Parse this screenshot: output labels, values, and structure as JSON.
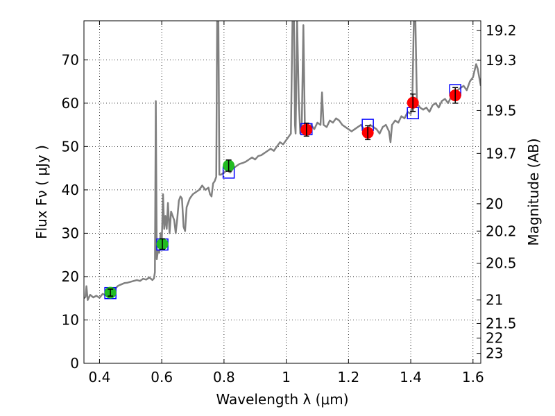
{
  "chart_data": {
    "type": "scatter",
    "xlabel": "Wavelength  λ (μm)",
    "ylabel": "Flux  Fν  ( μJy )",
    "y2label": "Magnitude (AB)",
    "xlim": [
      0.35,
      1.625
    ],
    "ylim": [
      0,
      79
    ],
    "grid": true,
    "x_ticks": [
      0.4,
      0.6,
      0.8,
      1.0,
      1.2,
      1.4,
      1.6
    ],
    "x_tick_labels": [
      "0.4",
      "0.6",
      "0.8",
      "1",
      "1.2",
      "1.4",
      "1.6"
    ],
    "y_ticks": [
      0,
      10,
      20,
      30,
      40,
      50,
      60,
      70
    ],
    "y_tick_labels": [
      "0",
      "10",
      "20",
      "30",
      "40",
      "50",
      "60",
      "70"
    ],
    "mag_ticks": [
      {
        "label": "19.2",
        "flux": 76.8
      },
      {
        "label": "19.3",
        "flux": 69.9
      },
      {
        "label": "19.5",
        "flux": 58.3
      },
      {
        "label": "19.7",
        "flux": 48.4
      },
      {
        "label": "20",
        "flux": 36.8
      },
      {
        "label": "20.2",
        "flux": 30.5
      },
      {
        "label": "20.5",
        "flux": 23.1
      },
      {
        "label": "21",
        "flux": 14.6
      },
      {
        "label": "21.5",
        "flux": 9.2
      },
      {
        "label": "22",
        "flux": 5.8
      },
      {
        "label": "23",
        "flux": 2.3
      }
    ],
    "series": [
      {
        "kind": "line",
        "color": "#808080",
        "points": [
          [
            0.35,
            15.0
          ],
          [
            0.355,
            15.3
          ],
          [
            0.358,
            17.8
          ],
          [
            0.362,
            14.6
          ],
          [
            0.37,
            15.8
          ],
          [
            0.38,
            15.2
          ],
          [
            0.39,
            15.6
          ],
          [
            0.4,
            15.1
          ],
          [
            0.41,
            16.0
          ],
          [
            0.42,
            15.7
          ],
          [
            0.43,
            16.4
          ],
          [
            0.44,
            17.0
          ],
          [
            0.45,
            17.2
          ],
          [
            0.46,
            17.9
          ],
          [
            0.47,
            18.2
          ],
          [
            0.48,
            18.5
          ],
          [
            0.49,
            18.6
          ],
          [
            0.5,
            18.8
          ],
          [
            0.51,
            19.0
          ],
          [
            0.52,
            19.2
          ],
          [
            0.53,
            19.0
          ],
          [
            0.54,
            19.5
          ],
          [
            0.55,
            19.3
          ],
          [
            0.56,
            19.8
          ],
          [
            0.57,
            19.2
          ],
          [
            0.575,
            19.6
          ],
          [
            0.578,
            21.0
          ],
          [
            0.581,
            60.5
          ],
          [
            0.584,
            24.0
          ],
          [
            0.588,
            26.0
          ],
          [
            0.592,
            25.5
          ],
          [
            0.596,
            30.0
          ],
          [
            0.6,
            28.0
          ],
          [
            0.604,
            39.0
          ],
          [
            0.608,
            31.0
          ],
          [
            0.612,
            34.0
          ],
          [
            0.616,
            31.0
          ],
          [
            0.62,
            37.0
          ],
          [
            0.625,
            30.0
          ],
          [
            0.63,
            35.0
          ],
          [
            0.635,
            34.0
          ],
          [
            0.64,
            33.0
          ],
          [
            0.645,
            30.0
          ],
          [
            0.65,
            33.5
          ],
          [
            0.655,
            37.5
          ],
          [
            0.66,
            38.5
          ],
          [
            0.665,
            38.0
          ],
          [
            0.67,
            31.5
          ],
          [
            0.675,
            30.5
          ],
          [
            0.68,
            36.0
          ],
          [
            0.69,
            38.0
          ],
          [
            0.7,
            39.0
          ],
          [
            0.71,
            39.5
          ],
          [
            0.72,
            40.0
          ],
          [
            0.73,
            41.0
          ],
          [
            0.74,
            40.0
          ],
          [
            0.75,
            40.5
          ],
          [
            0.755,
            39.0
          ],
          [
            0.76,
            38.5
          ],
          [
            0.765,
            41.5
          ],
          [
            0.77,
            42.0
          ],
          [
            0.775,
            43.0
          ],
          [
            0.778,
            79.0
          ],
          [
            0.782,
            79.0
          ],
          [
            0.785,
            43.5
          ],
          [
            0.79,
            43.5
          ],
          [
            0.8,
            44.0
          ],
          [
            0.81,
            44.5
          ],
          [
            0.82,
            44.0
          ],
          [
            0.83,
            45.0
          ],
          [
            0.84,
            45.5
          ],
          [
            0.85,
            46.0
          ],
          [
            0.86,
            46.2
          ],
          [
            0.87,
            46.5
          ],
          [
            0.88,
            47.0
          ],
          [
            0.89,
            47.5
          ],
          [
            0.9,
            47.0
          ],
          [
            0.91,
            47.8
          ],
          [
            0.92,
            48.0
          ],
          [
            0.93,
            48.5
          ],
          [
            0.94,
            49.0
          ],
          [
            0.95,
            49.5
          ],
          [
            0.96,
            49.0
          ],
          [
            0.97,
            50.0
          ],
          [
            0.98,
            51.0
          ],
          [
            0.99,
            50.5
          ],
          [
            1.0,
            51.5
          ],
          [
            1.01,
            52.5
          ],
          [
            1.015,
            53.0
          ],
          [
            1.02,
            79.0
          ],
          [
            1.025,
            79.0
          ],
          [
            1.028,
            55.0
          ],
          [
            1.03,
            53.0
          ],
          [
            1.035,
            79.0
          ],
          [
            1.04,
            61.0
          ],
          [
            1.045,
            53.0
          ],
          [
            1.05,
            55.0
          ],
          [
            1.055,
            78.0
          ],
          [
            1.06,
            54.0
          ],
          [
            1.07,
            54.5
          ],
          [
            1.08,
            55.0
          ],
          [
            1.09,
            54.0
          ],
          [
            1.1,
            55.5
          ],
          [
            1.11,
            55.0
          ],
          [
            1.115,
            62.5
          ],
          [
            1.12,
            55.0
          ],
          [
            1.13,
            54.5
          ],
          [
            1.14,
            56.0
          ],
          [
            1.15,
            55.5
          ],
          [
            1.16,
            56.5
          ],
          [
            1.17,
            56.0
          ],
          [
            1.18,
            55.0
          ],
          [
            1.19,
            54.5
          ],
          [
            1.2,
            54.0
          ],
          [
            1.21,
            53.5
          ],
          [
            1.22,
            54.0
          ],
          [
            1.23,
            54.5
          ],
          [
            1.24,
            55.0
          ],
          [
            1.25,
            54.0
          ],
          [
            1.26,
            53.5
          ],
          [
            1.27,
            55.0
          ],
          [
            1.28,
            54.5
          ],
          [
            1.29,
            54.0
          ],
          [
            1.3,
            53.0
          ],
          [
            1.31,
            54.5
          ],
          [
            1.32,
            55.0
          ],
          [
            1.33,
            53.5
          ],
          [
            1.335,
            51.0
          ],
          [
            1.34,
            55.0
          ],
          [
            1.35,
            56.0
          ],
          [
            1.36,
            55.5
          ],
          [
            1.37,
            57.0
          ],
          [
            1.38,
            56.5
          ],
          [
            1.39,
            58.0
          ],
          [
            1.4,
            57.5
          ],
          [
            1.405,
            60.0
          ],
          [
            1.41,
            79.0
          ],
          [
            1.415,
            79.0
          ],
          [
            1.42,
            60.0
          ],
          [
            1.43,
            59.0
          ],
          [
            1.44,
            58.5
          ],
          [
            1.45,
            59.0
          ],
          [
            1.46,
            58.0
          ],
          [
            1.47,
            59.5
          ],
          [
            1.48,
            60.0
          ],
          [
            1.49,
            59.0
          ],
          [
            1.5,
            60.5
          ],
          [
            1.51,
            61.0
          ],
          [
            1.52,
            60.0
          ],
          [
            1.53,
            61.5
          ],
          [
            1.54,
            62.0
          ],
          [
            1.55,
            63.0
          ],
          [
            1.56,
            63.5
          ],
          [
            1.57,
            64.0
          ],
          [
            1.58,
            63.0
          ],
          [
            1.59,
            65.0
          ],
          [
            1.6,
            66.0
          ],
          [
            1.61,
            69.0
          ],
          [
            1.615,
            68.0
          ],
          [
            1.625,
            64.0
          ]
        ]
      },
      {
        "kind": "model_boxes",
        "color": "#0000ff",
        "points": [
          [
            0.435,
            16.2
          ],
          [
            0.602,
            27.4
          ],
          [
            0.815,
            44.0
          ],
          [
            1.065,
            54.0
          ],
          [
            1.262,
            55.0
          ],
          [
            1.407,
            57.7
          ],
          [
            1.543,
            63.0
          ]
        ]
      },
      {
        "kind": "points_with_errors",
        "color": "#22bb22",
        "points": [
          {
            "x": 0.435,
            "y": 16.3,
            "err": 0.8
          },
          {
            "x": 0.602,
            "y": 27.5,
            "err": 1.2
          },
          {
            "x": 0.815,
            "y": 45.6,
            "err": 1.3
          }
        ]
      },
      {
        "kind": "points_with_errors",
        "color": "#ff0000",
        "points": [
          {
            "x": 1.065,
            "y": 53.9,
            "err": 1.5
          },
          {
            "x": 1.262,
            "y": 53.2,
            "err": 1.6
          },
          {
            "x": 1.407,
            "y": 60.1,
            "err": 2.0
          },
          {
            "x": 1.543,
            "y": 61.8,
            "err": 1.8
          }
        ]
      }
    ]
  }
}
